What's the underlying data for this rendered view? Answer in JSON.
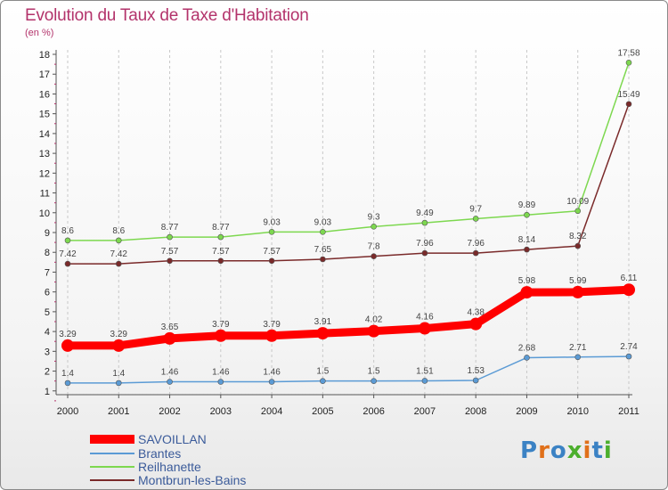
{
  "header": {
    "title": "Evolution du Taux de Taxe d'Habitation",
    "subtitle": "(en %)"
  },
  "logo": {
    "text": "Proxiti",
    "colors": [
      "#3b82c4",
      "#e0701a",
      "#3b82c4",
      "#4caf2d",
      "#e0701a",
      "#3b82c4",
      "#4caf2d"
    ]
  },
  "chart_data": {
    "type": "line",
    "title": "Evolution du Taux de Taxe d'Habitation",
    "ylabel": "(en %)",
    "xlabel": "",
    "ylim": [
      0,
      18
    ],
    "yticks": [
      1,
      2,
      3,
      4,
      5,
      6,
      7,
      8,
      9,
      10,
      11,
      12,
      13,
      14,
      15,
      16,
      17,
      18
    ],
    "x": [
      "2000",
      "2001",
      "2002",
      "2003",
      "2004",
      "2005",
      "2006",
      "2007",
      "2008",
      "2009",
      "2010",
      "2011"
    ],
    "series": [
      {
        "name": "SAVOILLAN",
        "color": "#ff0000",
        "values": [
          3.29,
          3.29,
          3.65,
          3.79,
          3.79,
          3.91,
          4.02,
          4.16,
          4.38,
          5.98,
          5.99,
          6.11
        ],
        "labels": [
          "3.29",
          "3.29",
          "3.65",
          "3.79",
          "3.79",
          "3.91",
          "4.02",
          "4.16",
          "4.38",
          "5.98",
          "5.99",
          "6.11"
        ]
      },
      {
        "name": "Brantes",
        "color": "#5b9bd5",
        "values": [
          1.4,
          1.4,
          1.46,
          1.46,
          1.46,
          1.5,
          1.5,
          1.51,
          1.53,
          2.68,
          2.71,
          2.74
        ],
        "labels": [
          "1.4",
          "1.4",
          "1.46",
          "1.46",
          "1.46",
          "1.5",
          "1.5",
          "1.51",
          "1.53",
          "2.68",
          "2.71",
          "2.74"
        ]
      },
      {
        "name": "Reilhanette",
        "color": "#7dd84f",
        "values": [
          8.6,
          8.6,
          8.77,
          8.77,
          9.03,
          9.03,
          9.3,
          9.49,
          9.7,
          9.89,
          10.09,
          17.58
        ],
        "labels": [
          "8.6",
          "8.6",
          "8.77",
          "8.77",
          "9.03",
          "9.03",
          "9.3",
          "9.49",
          "9.7",
          "9.89",
          "10.09",
          "17.58"
        ]
      },
      {
        "name": "Montbrun-les-Bains",
        "color": "#7a2a2a",
        "values": [
          7.42,
          7.42,
          7.57,
          7.57,
          7.57,
          7.65,
          7.8,
          7.96,
          7.96,
          8.14,
          8.32,
          15.49
        ],
        "labels": [
          "7.42",
          "7.42",
          "7.57",
          "7.57",
          "7.57",
          "7.65",
          "7.8",
          "7.96",
          "7.96",
          "8.14",
          "8.32",
          "15.49"
        ]
      }
    ],
    "legend_position": "bottom-left"
  }
}
